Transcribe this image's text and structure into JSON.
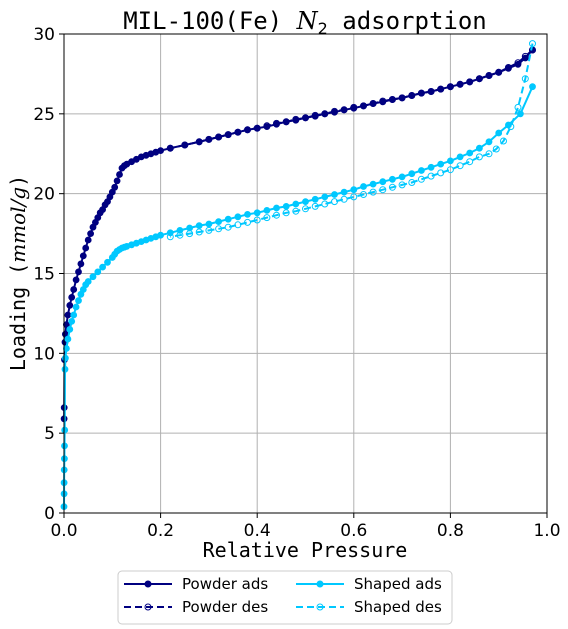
{
  "chart_data": {
    "type": "line",
    "title_prefix": "MIL-100(Fe) ",
    "title_math": "N",
    "title_sub": "2",
    "title_suffix": " adsorption",
    "xlabel": "Relative Pressure",
    "ylabel_prefix": "Loading (",
    "ylabel_math": "mmol/g",
    "ylabel_suffix": ")",
    "xlim": [
      0,
      1.0
    ],
    "ylim": [
      0,
      30
    ],
    "xticks": [
      0.0,
      0.2,
      0.4,
      0.6,
      0.8,
      1.0
    ],
    "xtick_labels": [
      "0.0",
      "0.2",
      "0.4",
      "0.6",
      "0.8",
      "1.0"
    ],
    "yticks": [
      0,
      5,
      10,
      15,
      20,
      25,
      30
    ],
    "ytick_labels": [
      "0",
      "5",
      "10",
      "15",
      "20",
      "25",
      "30"
    ],
    "grid": true,
    "legend_position": "bottom-center",
    "series": [
      {
        "name": "Powder ads",
        "color": "#000080",
        "style": "solid",
        "marker": "filled-circle",
        "x": [
          0.0002,
          0.0005,
          0.001,
          0.002,
          0.003,
          0.005,
          0.008,
          0.012,
          0.016,
          0.02,
          0.025,
          0.03,
          0.035,
          0.04,
          0.045,
          0.05,
          0.055,
          0.06,
          0.065,
          0.07,
          0.075,
          0.08,
          0.085,
          0.09,
          0.095,
          0.1,
          0.105,
          0.11,
          0.115,
          0.12,
          0.125,
          0.13,
          0.14,
          0.15,
          0.16,
          0.17,
          0.18,
          0.19,
          0.2,
          0.22,
          0.25,
          0.28,
          0.3,
          0.32,
          0.34,
          0.36,
          0.38,
          0.4,
          0.42,
          0.44,
          0.46,
          0.48,
          0.5,
          0.52,
          0.54,
          0.56,
          0.58,
          0.6,
          0.62,
          0.64,
          0.66,
          0.68,
          0.7,
          0.72,
          0.74,
          0.76,
          0.78,
          0.8,
          0.82,
          0.84,
          0.86,
          0.88,
          0.9,
          0.92,
          0.94,
          0.955,
          0.97
        ],
        "y": [
          5.9,
          6.6,
          9.6,
          10.7,
          11.2,
          11.8,
          12.4,
          13.0,
          13.5,
          14.0,
          14.6,
          15.1,
          15.6,
          16.1,
          16.6,
          17.1,
          17.5,
          17.9,
          18.2,
          18.5,
          18.8,
          19.0,
          19.3,
          19.5,
          19.8,
          20.1,
          20.4,
          20.8,
          21.2,
          21.6,
          21.75,
          21.85,
          22.0,
          22.15,
          22.3,
          22.4,
          22.5,
          22.6,
          22.7,
          22.85,
          23.05,
          23.25,
          23.4,
          23.55,
          23.7,
          23.85,
          24.0,
          24.1,
          24.2,
          24.35,
          24.5,
          24.6,
          24.75,
          24.85,
          25.0,
          25.1,
          25.25,
          25.35,
          25.5,
          25.65,
          25.75,
          25.9,
          26.0,
          26.15,
          26.3,
          26.4,
          26.55,
          26.7,
          26.85,
          27.0,
          27.2,
          27.4,
          27.6,
          27.85,
          28.1,
          28.5,
          29.0
        ]
      },
      {
        "name": "Powder des",
        "color": "#000080",
        "style": "dashed",
        "marker": "open-circle",
        "x": [
          0.97,
          0.955,
          0.94,
          0.92,
          0.9,
          0.88,
          0.86,
          0.84,
          0.82,
          0.8,
          0.78,
          0.76,
          0.74,
          0.72,
          0.7,
          0.68,
          0.66,
          0.64,
          0.62,
          0.6,
          0.58,
          0.56,
          0.54,
          0.52,
          0.5,
          0.48,
          0.46,
          0.44,
          0.42,
          0.4,
          0.38,
          0.36,
          0.34,
          0.32,
          0.3,
          0.28,
          0.25,
          0.22
        ],
        "y": [
          29.0,
          28.6,
          28.2,
          27.9,
          27.6,
          27.4,
          27.2,
          27.0,
          26.85,
          26.7,
          26.55,
          26.4,
          26.3,
          26.15,
          26.0,
          25.9,
          25.8,
          25.65,
          25.5,
          25.4,
          25.25,
          25.15,
          25.0,
          24.9,
          24.75,
          24.65,
          24.5,
          24.4,
          24.25,
          24.1,
          24.0,
          23.85,
          23.7,
          23.55,
          23.4,
          23.25,
          23.05,
          22.85
        ]
      },
      {
        "name": "Shaped ads",
        "color": "#00C8FF",
        "style": "solid",
        "marker": "filled-circle",
        "x": [
          0.0001,
          0.0002,
          0.0003,
          0.0005,
          0.0008,
          0.001,
          0.0015,
          0.002,
          0.003,
          0.005,
          0.008,
          0.012,
          0.016,
          0.02,
          0.025,
          0.03,
          0.035,
          0.04,
          0.045,
          0.05,
          0.06,
          0.07,
          0.08,
          0.09,
          0.1,
          0.105,
          0.11,
          0.115,
          0.12,
          0.125,
          0.13,
          0.14,
          0.15,
          0.16,
          0.17,
          0.18,
          0.19,
          0.2,
          0.22,
          0.24,
          0.26,
          0.28,
          0.3,
          0.32,
          0.34,
          0.36,
          0.38,
          0.4,
          0.42,
          0.44,
          0.46,
          0.48,
          0.5,
          0.52,
          0.54,
          0.56,
          0.58,
          0.6,
          0.62,
          0.64,
          0.66,
          0.68,
          0.7,
          0.72,
          0.74,
          0.76,
          0.78,
          0.8,
          0.82,
          0.84,
          0.86,
          0.88,
          0.9,
          0.92,
          0.945,
          0.97
        ],
        "y": [
          0.4,
          1.2,
          1.9,
          2.7,
          3.4,
          4.2,
          5.2,
          9.0,
          9.7,
          10.3,
          10.9,
          11.5,
          12.0,
          12.4,
          12.9,
          13.3,
          13.7,
          14.0,
          14.3,
          14.5,
          14.8,
          15.1,
          15.4,
          15.7,
          16.0,
          16.2,
          16.4,
          16.5,
          16.6,
          16.65,
          16.7,
          16.8,
          16.9,
          17.0,
          17.1,
          17.2,
          17.3,
          17.4,
          17.55,
          17.7,
          17.85,
          18.0,
          18.1,
          18.25,
          18.4,
          18.55,
          18.7,
          18.8,
          18.95,
          19.1,
          19.2,
          19.35,
          19.5,
          19.65,
          19.8,
          19.95,
          20.1,
          20.25,
          20.45,
          20.6,
          20.75,
          20.9,
          21.05,
          21.25,
          21.45,
          21.65,
          21.85,
          22.05,
          22.3,
          22.55,
          22.85,
          23.25,
          23.8,
          24.3,
          25.0,
          26.7
        ]
      },
      {
        "name": "Shaped des",
        "color": "#00C8FF",
        "style": "dashed",
        "marker": "open-circle",
        "x": [
          0.97,
          0.955,
          0.94,
          0.925,
          0.91,
          0.895,
          0.88,
          0.86,
          0.84,
          0.82,
          0.8,
          0.78,
          0.76,
          0.74,
          0.72,
          0.7,
          0.68,
          0.66,
          0.64,
          0.62,
          0.6,
          0.58,
          0.56,
          0.54,
          0.52,
          0.5,
          0.48,
          0.46,
          0.44,
          0.42,
          0.4,
          0.38,
          0.36,
          0.34,
          0.32,
          0.3,
          0.28,
          0.26,
          0.24,
          0.22
        ],
        "y": [
          29.4,
          27.2,
          25.4,
          24.2,
          23.3,
          22.8,
          22.5,
          22.3,
          22.0,
          21.75,
          21.5,
          21.3,
          21.1,
          20.9,
          20.7,
          20.55,
          20.4,
          20.25,
          20.1,
          19.95,
          19.8,
          19.65,
          19.5,
          19.35,
          19.2,
          19.05,
          18.9,
          18.8,
          18.65,
          18.5,
          18.35,
          18.2,
          18.05,
          17.9,
          17.8,
          17.7,
          17.6,
          17.5,
          17.4,
          17.3
        ]
      }
    ]
  }
}
